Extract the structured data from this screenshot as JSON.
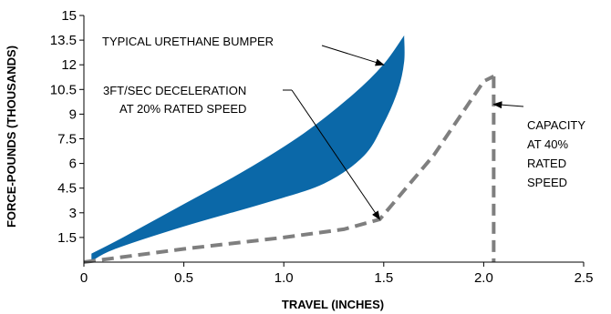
{
  "colors": {
    "bumper_fill": "#0b68a8",
    "dashed_line": "#7f7f7f",
    "axis": "#000000",
    "arrow": "#000000",
    "background": "#ffffff"
  },
  "chart_data": {
    "type": "area",
    "xlabel": "TRAVEL (INCHES)",
    "ylabel": "FORCE-POUNDS (THOUSANDS)",
    "xlim": [
      0,
      2.5
    ],
    "ylim": [
      0,
      15
    ],
    "x_ticks": [
      "0",
      "0.5",
      "1.0",
      "1.5",
      "2.0",
      "2.5"
    ],
    "y_ticks": [
      "1.5",
      "3",
      "4.5",
      "6",
      "7.5",
      "9",
      "10.5",
      "12",
      "13.5",
      "15"
    ],
    "grid": false,
    "series": [
      {
        "name": "TYPICAL URETHANE BUMPER",
        "style": "filled-region",
        "upper_boundary": [
          [
            0.04,
            0.5
          ],
          [
            0.2,
            1.5
          ],
          [
            0.5,
            3.5
          ],
          [
            0.8,
            5.5
          ],
          [
            1.1,
            7.8
          ],
          [
            1.35,
            10.2
          ],
          [
            1.5,
            12.0
          ],
          [
            1.6,
            13.7
          ]
        ],
        "lower_boundary": [
          [
            1.6,
            13.7
          ],
          [
            1.6,
            12.2
          ],
          [
            1.57,
            10.5
          ],
          [
            1.5,
            8.5
          ],
          [
            1.4,
            6.5
          ],
          [
            1.2,
            4.8
          ],
          [
            0.9,
            3.6
          ],
          [
            0.5,
            2.2
          ],
          [
            0.15,
            0.8
          ],
          [
            0.04,
            0.1
          ]
        ]
      },
      {
        "name": "3FT/SEC DECELERATION AT 20% RATED SPEED",
        "style": "dashed-line",
        "points": [
          [
            0.0,
            0.0
          ],
          [
            0.5,
            0.8
          ],
          [
            1.0,
            1.5
          ],
          [
            1.3,
            2.0
          ],
          [
            1.48,
            2.6
          ],
          [
            1.75,
            6.5
          ],
          [
            2.0,
            11.0
          ],
          [
            2.05,
            11.3
          ]
        ]
      },
      {
        "name": "CAPACITY AT 40% RATED SPEED",
        "style": "dashed-vertical",
        "points": [
          [
            2.05,
            11.3
          ],
          [
            2.05,
            0.0
          ]
        ]
      }
    ],
    "annotations": [
      {
        "text": "TYPICAL URETHANE BUMPER",
        "points_to": [
          1.5,
          12.0
        ]
      },
      {
        "lines": [
          "3FT/SEC DECELERATION",
          "AT 20% RATED SPEED"
        ],
        "points_to": [
          1.48,
          2.6
        ]
      },
      {
        "lines": [
          "CAPACITY",
          "AT 40%",
          "RATED",
          "SPEED"
        ],
        "points_to": [
          2.05,
          9.6
        ]
      }
    ]
  }
}
